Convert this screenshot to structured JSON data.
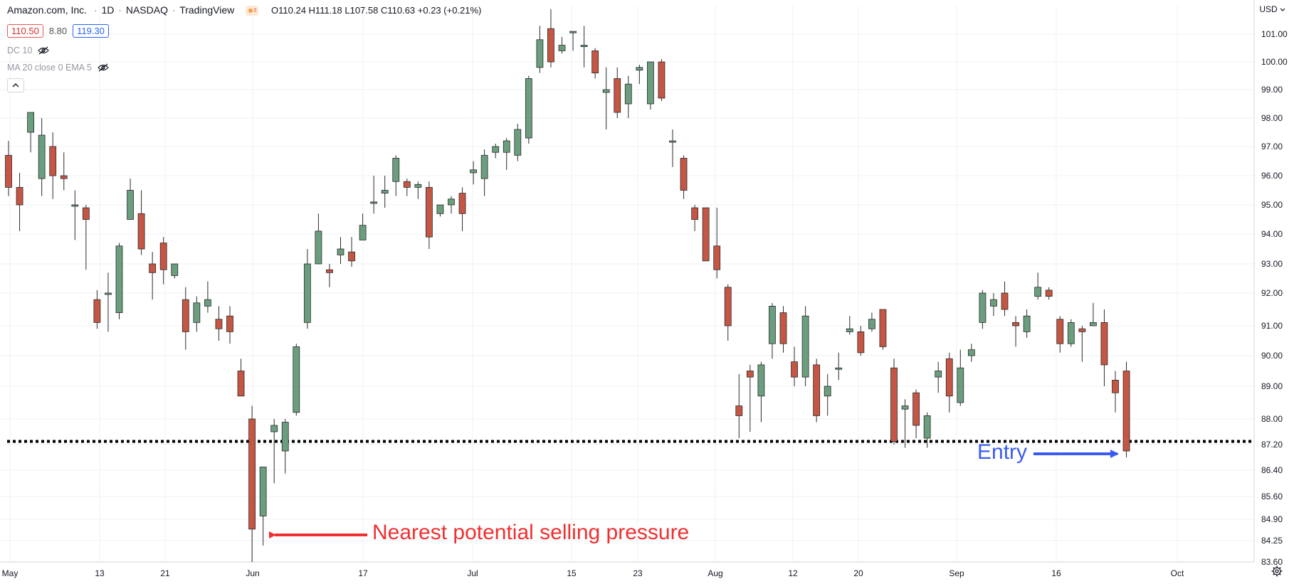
{
  "header": {
    "symbol": "Amazon.com, Inc.",
    "interval": "1D",
    "exchange": "NASDAQ",
    "source": "TradingView",
    "ohlc": "O110.24 H111.18 L107.58 C110.63 +0.23 (+0.21%)",
    "sun_icon": "sun-icon",
    "wave_icon": "wave-icon"
  },
  "badges": {
    "bid": "110.50",
    "spread": "8.80",
    "ask": "119.30"
  },
  "indicators": [
    {
      "label": "DC 10",
      "icon": "eye-off-icon"
    },
    {
      "label": "MA 20 close 0 EMA 5",
      "icon": "eye-off-icon"
    }
  ],
  "currency": "USD",
  "annotations": {
    "selling_pressure": "Nearest potential selling pressure",
    "entry": "Entry"
  },
  "colors": {
    "up": "#6b9e7e",
    "down": "#c55644",
    "arrow_red": "#ef3030",
    "arrow_blue": "#3a5bf0",
    "grid": "#eef0f3"
  },
  "chart_data": {
    "type": "candlestick",
    "x_ticks": [
      "May",
      "13",
      "21",
      "Jun",
      "17",
      "Jul",
      "15",
      "23",
      "Aug",
      "12",
      "20",
      "Sep",
      "16",
      "Oct"
    ],
    "y_ticks": [
      "101.00",
      "100.00",
      "99.00",
      "98.00",
      "97.00",
      "96.00",
      "95.00",
      "94.00",
      "93.00",
      "92.00",
      "91.00",
      "90.00",
      "89.00",
      "88.00",
      "87.20",
      "86.40",
      "85.60",
      "84.90",
      "84.25",
      "83.60"
    ],
    "support_level": 87.3,
    "candles": [
      {
        "o": 96.7,
        "h": 97.2,
        "l": 95.3,
        "c": 95.6
      },
      {
        "o": 95.6,
        "h": 96.1,
        "l": 94.1,
        "c": 95.0
      },
      {
        "o": 97.5,
        "h": 98.2,
        "l": 96.8,
        "c": 98.2
      },
      {
        "o": 95.9,
        "h": 98.0,
        "l": 95.3,
        "c": 97.4
      },
      {
        "o": 97.0,
        "h": 97.5,
        "l": 95.2,
        "c": 96.0
      },
      {
        "o": 96.0,
        "h": 96.8,
        "l": 95.5,
        "c": 95.9
      },
      {
        "o": 95.0,
        "h": 95.5,
        "l": 93.8,
        "c": 95.0
      },
      {
        "o": 94.9,
        "h": 95.0,
        "l": 92.8,
        "c": 94.5
      },
      {
        "o": 91.8,
        "h": 92.1,
        "l": 90.9,
        "c": 91.1
      },
      {
        "o": 92.0,
        "h": 92.7,
        "l": 90.8,
        "c": 92.0
      },
      {
        "o": 91.4,
        "h": 93.7,
        "l": 91.2,
        "c": 93.6
      },
      {
        "o": 94.5,
        "h": 95.9,
        "l": 94.5,
        "c": 95.5
      },
      {
        "o": 94.7,
        "h": 95.5,
        "l": 93.3,
        "c": 93.5
      },
      {
        "o": 93.0,
        "h": 93.4,
        "l": 91.8,
        "c": 92.7
      },
      {
        "o": 93.7,
        "h": 93.9,
        "l": 92.3,
        "c": 92.8
      },
      {
        "o": 92.6,
        "h": 93.0,
        "l": 92.5,
        "c": 93.0
      },
      {
        "o": 91.8,
        "h": 92.2,
        "l": 90.2,
        "c": 90.8
      },
      {
        "o": 91.1,
        "h": 91.9,
        "l": 90.8,
        "c": 91.7
      },
      {
        "o": 91.6,
        "h": 92.4,
        "l": 91.4,
        "c": 91.8
      },
      {
        "o": 91.2,
        "h": 91.6,
        "l": 90.5,
        "c": 90.9
      },
      {
        "o": 91.3,
        "h": 91.6,
        "l": 90.4,
        "c": 90.8
      },
      {
        "o": 89.5,
        "h": 89.9,
        "l": 88.7,
        "c": 88.7
      },
      {
        "o": 88.0,
        "h": 88.4,
        "l": 83.6,
        "c": 84.6
      },
      {
        "o": 85.0,
        "h": 86.5,
        "l": 84.1,
        "c": 86.5
      },
      {
        "o": 87.6,
        "h": 88.0,
        "l": 86.0,
        "c": 87.8
      },
      {
        "o": 87.0,
        "h": 88.0,
        "l": 86.3,
        "c": 87.9
      },
      {
        "o": 88.2,
        "h": 90.4,
        "l": 88.1,
        "c": 90.3
      },
      {
        "o": 91.1,
        "h": 93.5,
        "l": 90.9,
        "c": 93.0
      },
      {
        "o": 93.0,
        "h": 94.7,
        "l": 93.0,
        "c": 94.1
      },
      {
        "o": 92.8,
        "h": 93.0,
        "l": 92.2,
        "c": 92.7
      },
      {
        "o": 93.3,
        "h": 93.9,
        "l": 93.0,
        "c": 93.5
      },
      {
        "o": 93.4,
        "h": 93.9,
        "l": 92.9,
        "c": 93.1
      },
      {
        "o": 93.8,
        "h": 94.7,
        "l": 93.8,
        "c": 94.3
      },
      {
        "o": 95.1,
        "h": 96.0,
        "l": 94.7,
        "c": 95.1
      },
      {
        "o": 95.4,
        "h": 96.0,
        "l": 94.9,
        "c": 95.5
      },
      {
        "o": 95.8,
        "h": 96.7,
        "l": 95.3,
        "c": 96.6
      },
      {
        "o": 95.8,
        "h": 95.9,
        "l": 95.3,
        "c": 95.6
      },
      {
        "o": 95.6,
        "h": 95.8,
        "l": 95.2,
        "c": 95.7
      },
      {
        "o": 95.6,
        "h": 95.8,
        "l": 93.5,
        "c": 93.9
      },
      {
        "o": 94.7,
        "h": 95.0,
        "l": 94.6,
        "c": 95.0
      },
      {
        "o": 95.0,
        "h": 95.3,
        "l": 94.7,
        "c": 95.2
      },
      {
        "o": 95.4,
        "h": 95.6,
        "l": 94.1,
        "c": 94.7
      },
      {
        "o": 96.1,
        "h": 96.5,
        "l": 95.7,
        "c": 96.2
      },
      {
        "o": 95.9,
        "h": 96.9,
        "l": 95.3,
        "c": 96.7
      },
      {
        "o": 96.8,
        "h": 97.1,
        "l": 96.6,
        "c": 97.0
      },
      {
        "o": 96.8,
        "h": 97.3,
        "l": 96.2,
        "c": 97.2
      },
      {
        "o": 96.7,
        "h": 97.8,
        "l": 96.5,
        "c": 97.6
      },
      {
        "o": 97.3,
        "h": 99.5,
        "l": 97.1,
        "c": 99.4
      },
      {
        "o": 99.8,
        "h": 101.3,
        "l": 99.6,
        "c": 100.8
      },
      {
        "o": 101.2,
        "h": 101.9,
        "l": 99.8,
        "c": 100.0
      },
      {
        "o": 100.4,
        "h": 100.9,
        "l": 100.3,
        "c": 100.6
      },
      {
        "o": 101.1,
        "h": 101.1,
        "l": 100.4,
        "c": 101.1
      },
      {
        "o": 100.6,
        "h": 101.3,
        "l": 99.8,
        "c": 100.6
      },
      {
        "o": 100.4,
        "h": 100.5,
        "l": 99.4,
        "c": 99.6
      },
      {
        "o": 98.9,
        "h": 99.8,
        "l": 97.6,
        "c": 99.0
      },
      {
        "o": 99.4,
        "h": 99.8,
        "l": 98.0,
        "c": 98.2
      },
      {
        "o": 98.5,
        "h": 99.5,
        "l": 98.0,
        "c": 99.2
      },
      {
        "o": 99.7,
        "h": 99.9,
        "l": 99.2,
        "c": 99.8
      },
      {
        "o": 98.5,
        "h": 100.0,
        "l": 98.3,
        "c": 100.0
      },
      {
        "o": 100.0,
        "h": 100.1,
        "l": 98.6,
        "c": 98.7
      },
      {
        "o": 97.2,
        "h": 97.6,
        "l": 96.3,
        "c": 97.2
      },
      {
        "o": 96.6,
        "h": 96.7,
        "l": 95.2,
        "c": 95.5
      },
      {
        "o": 94.9,
        "h": 95.0,
        "l": 94.1,
        "c": 94.5
      },
      {
        "o": 94.9,
        "h": 94.9,
        "l": 93.1,
        "c": 93.1
      },
      {
        "o": 93.6,
        "h": 94.9,
        "l": 92.5,
        "c": 92.8
      },
      {
        "o": 92.2,
        "h": 92.3,
        "l": 90.5,
        "c": 91.0
      },
      {
        "o": 88.4,
        "h": 89.4,
        "l": 87.4,
        "c": 88.1
      },
      {
        "o": 89.5,
        "h": 89.7,
        "l": 87.6,
        "c": 89.3
      },
      {
        "o": 88.7,
        "h": 89.8,
        "l": 87.9,
        "c": 89.7
      },
      {
        "o": 90.4,
        "h": 91.7,
        "l": 89.9,
        "c": 91.6
      },
      {
        "o": 91.4,
        "h": 91.6,
        "l": 90.1,
        "c": 90.4
      },
      {
        "o": 89.8,
        "h": 90.3,
        "l": 89.0,
        "c": 89.3
      },
      {
        "o": 89.3,
        "h": 91.6,
        "l": 89.0,
        "c": 91.3
      },
      {
        "o": 89.7,
        "h": 89.9,
        "l": 87.9,
        "c": 88.1
      },
      {
        "o": 88.7,
        "h": 89.4,
        "l": 88.1,
        "c": 89.0
      },
      {
        "o": 89.6,
        "h": 90.1,
        "l": 89.2,
        "c": 89.6
      },
      {
        "o": 90.8,
        "h": 91.3,
        "l": 90.7,
        "c": 90.9
      },
      {
        "o": 90.8,
        "h": 91.0,
        "l": 90.0,
        "c": 90.1
      },
      {
        "o": 90.9,
        "h": 91.4,
        "l": 90.8,
        "c": 91.2
      },
      {
        "o": 91.5,
        "h": 91.5,
        "l": 90.2,
        "c": 90.3
      },
      {
        "o": 89.6,
        "h": 89.9,
        "l": 87.2,
        "c": 87.3
      },
      {
        "o": 88.3,
        "h": 88.6,
        "l": 87.1,
        "c": 88.4
      },
      {
        "o": 88.8,
        "h": 88.9,
        "l": 87.4,
        "c": 87.8
      },
      {
        "o": 87.4,
        "h": 88.2,
        "l": 87.1,
        "c": 88.1
      },
      {
        "o": 89.3,
        "h": 89.8,
        "l": 88.8,
        "c": 89.5
      },
      {
        "o": 89.9,
        "h": 90.1,
        "l": 88.2,
        "c": 88.7
      },
      {
        "o": 88.5,
        "h": 90.2,
        "l": 88.4,
        "c": 89.6
      },
      {
        "o": 90.0,
        "h": 90.4,
        "l": 89.8,
        "c": 90.2
      },
      {
        "o": 91.1,
        "h": 92.1,
        "l": 90.9,
        "c": 92.0
      },
      {
        "o": 91.6,
        "h": 92.0,
        "l": 91.3,
        "c": 91.8
      },
      {
        "o": 92.0,
        "h": 92.4,
        "l": 91.3,
        "c": 91.5
      },
      {
        "o": 91.1,
        "h": 91.3,
        "l": 90.3,
        "c": 91.0
      },
      {
        "o": 90.8,
        "h": 91.5,
        "l": 90.6,
        "c": 91.3
      },
      {
        "o": 91.9,
        "h": 92.7,
        "l": 91.8,
        "c": 92.2
      },
      {
        "o": 92.1,
        "h": 92.2,
        "l": 91.8,
        "c": 91.9
      },
      {
        "o": 91.2,
        "h": 91.3,
        "l": 90.1,
        "c": 90.4
      },
      {
        "o": 90.4,
        "h": 91.2,
        "l": 90.3,
        "c": 91.1
      },
      {
        "o": 90.9,
        "h": 91.0,
        "l": 89.8,
        "c": 90.8
      },
      {
        "o": 91.0,
        "h": 91.7,
        "l": 91.0,
        "c": 91.1
      },
      {
        "o": 91.1,
        "h": 91.5,
        "l": 89.0,
        "c": 89.7
      },
      {
        "o": 89.2,
        "h": 89.5,
        "l": 88.2,
        "c": 88.8
      },
      {
        "o": 89.5,
        "h": 89.8,
        "l": 86.8,
        "c": 87.0
      }
    ]
  }
}
